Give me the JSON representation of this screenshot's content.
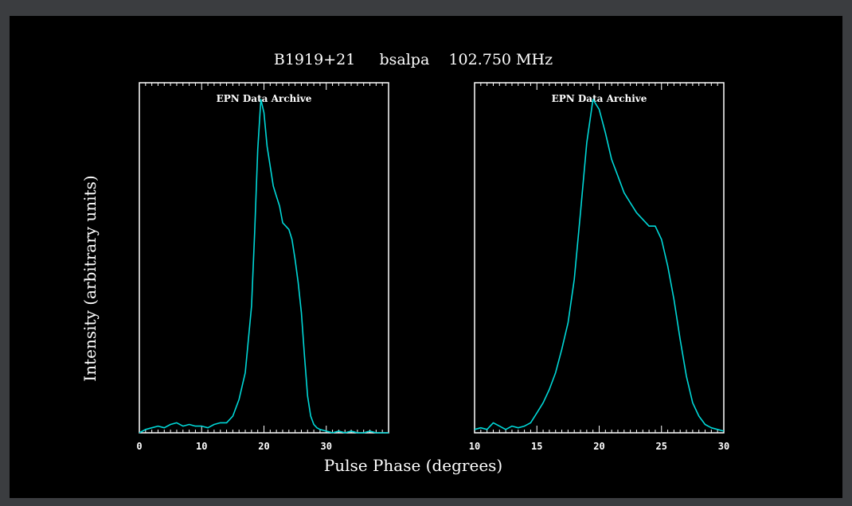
{
  "chart_data": [
    {
      "type": "line",
      "title": "B1919+21     bsalpa    102.750 MHz",
      "xlabel": "Pulse Phase (degrees)",
      "ylabel": "Intensity (arbitrary units)",
      "annotation": "EPN Data Archive",
      "xlim": [
        0,
        40
      ],
      "ylim": [
        0,
        1.05
      ],
      "xticks": [
        0,
        10,
        20,
        30
      ],
      "series_color": "#00d8d8",
      "series": [
        {
          "x": [
            0,
            1,
            2,
            3,
            4,
            5,
            6,
            7,
            8,
            9,
            10,
            11,
            12,
            13,
            14,
            15,
            16,
            17,
            18,
            18.5,
            19,
            19.5,
            20,
            20.5,
            21,
            21.5,
            22,
            22.5,
            23,
            23.5,
            24,
            24.5,
            25,
            25.5,
            26,
            26.5,
            27,
            27.5,
            28,
            28.5,
            29,
            30,
            31,
            32,
            33,
            34,
            35,
            36,
            37,
            38,
            39,
            40
          ],
          "y": [
            0.0,
            0.01,
            0.015,
            0.02,
            0.015,
            0.025,
            0.03,
            0.02,
            0.025,
            0.02,
            0.02,
            0.015,
            0.025,
            0.03,
            0.03,
            0.05,
            0.1,
            0.18,
            0.38,
            0.6,
            0.85,
            1.0,
            0.96,
            0.86,
            0.8,
            0.74,
            0.71,
            0.68,
            0.63,
            0.62,
            0.61,
            0.58,
            0.52,
            0.45,
            0.36,
            0.23,
            0.11,
            0.05,
            0.025,
            0.015,
            0.01,
            0.005,
            0.0,
            0.005,
            0.0,
            0.005,
            0.0,
            0.0,
            0.005,
            0.0,
            0.0,
            0.0
          ]
        }
      ]
    },
    {
      "type": "line",
      "title": "",
      "xlabel": "Pulse Phase (degrees)",
      "ylabel": "Intensity (arbitrary units)",
      "annotation": "EPN Data Archive",
      "xlim": [
        10,
        30
      ],
      "ylim": [
        0,
        1.05
      ],
      "xticks": [
        10,
        15,
        20,
        25,
        30
      ],
      "series_color": "#00d8d8",
      "series": [
        {
          "x": [
            10,
            10.5,
            11,
            11.5,
            12,
            12.5,
            13,
            13.5,
            14,
            14.5,
            15,
            15.5,
            16,
            16.5,
            17,
            17.5,
            18,
            18.5,
            19,
            19.5,
            20,
            20.5,
            21,
            21.5,
            22,
            22.5,
            23,
            23.5,
            24,
            24.5,
            25,
            25.5,
            26,
            26.5,
            27,
            27.5,
            28,
            28.5,
            29,
            29.5,
            30
          ],
          "y": [
            0.01,
            0.015,
            0.01,
            0.03,
            0.02,
            0.01,
            0.02,
            0.015,
            0.02,
            0.03,
            0.06,
            0.09,
            0.13,
            0.18,
            0.25,
            0.33,
            0.46,
            0.66,
            0.87,
            1.0,
            0.97,
            0.9,
            0.82,
            0.77,
            0.72,
            0.69,
            0.66,
            0.64,
            0.62,
            0.62,
            0.58,
            0.5,
            0.4,
            0.28,
            0.17,
            0.09,
            0.05,
            0.025,
            0.015,
            0.01,
            0.005
          ]
        }
      ]
    }
  ]
}
